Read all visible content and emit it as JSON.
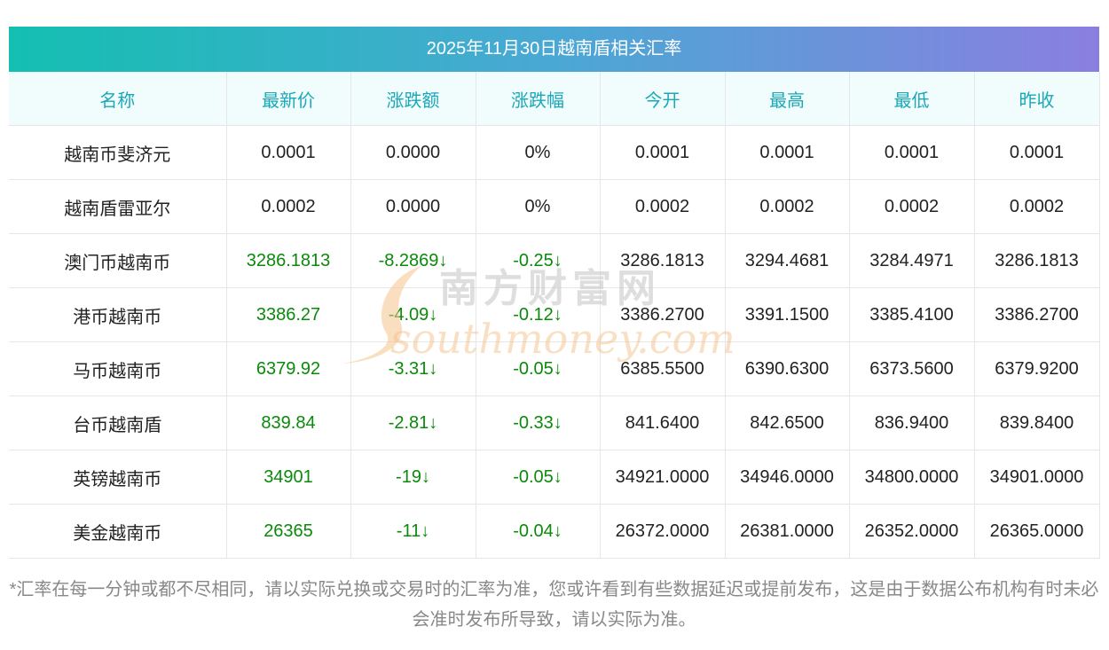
{
  "title": "2025年11月30日越南盾相关汇率",
  "colors": {
    "header_text": "#1aa8b8",
    "header_bg": "#f1fdfd",
    "down_green": "#0a8a0a",
    "gradient_start": "#14bfb1",
    "gradient_end": "#8a7fe0"
  },
  "table": {
    "columns": [
      "名称",
      "最新价",
      "涨跌额",
      "涨跌幅",
      "今开",
      "最高",
      "最低",
      "昨收"
    ],
    "rows": [
      {
        "name": "越南币斐济元",
        "latest": "0.0001",
        "change": "0.0000",
        "pct": "0%",
        "open": "0.0001",
        "high": "0.0001",
        "low": "0.0001",
        "prev": "0.0001",
        "trend": "flat"
      },
      {
        "name": "越南盾雷亚尔",
        "latest": "0.0002",
        "change": "0.0000",
        "pct": "0%",
        "open": "0.0002",
        "high": "0.0002",
        "low": "0.0002",
        "prev": "0.0002",
        "trend": "flat"
      },
      {
        "name": "澳门币越南币",
        "latest": "3286.1813",
        "change": "-8.2869↓",
        "pct": "-0.25↓",
        "open": "3286.1813",
        "high": "3294.4681",
        "low": "3284.4971",
        "prev": "3286.1813",
        "trend": "down"
      },
      {
        "name": "港币越南币",
        "latest": "3386.27",
        "change": "-4.09↓",
        "pct": "-0.12↓",
        "open": "3386.2700",
        "high": "3391.1500",
        "low": "3385.4100",
        "prev": "3386.2700",
        "trend": "down"
      },
      {
        "name": "马币越南币",
        "latest": "6379.92",
        "change": "-3.31↓",
        "pct": "-0.05↓",
        "open": "6385.5500",
        "high": "6390.6300",
        "low": "6373.5600",
        "prev": "6379.9200",
        "trend": "down"
      },
      {
        "name": "台币越南盾",
        "latest": "839.84",
        "change": "-2.81↓",
        "pct": "-0.33↓",
        "open": "841.6400",
        "high": "842.6500",
        "low": "836.9400",
        "prev": "839.8400",
        "trend": "down"
      },
      {
        "name": "英镑越南币",
        "latest": "34901",
        "change": "-19↓",
        "pct": "-0.05↓",
        "open": "34921.0000",
        "high": "34946.0000",
        "low": "34800.0000",
        "prev": "34901.0000",
        "trend": "down"
      },
      {
        "name": "美金越南币",
        "latest": "26365",
        "change": "-11↓",
        "pct": "-0.04↓",
        "open": "26372.0000",
        "high": "26381.0000",
        "low": "26352.0000",
        "prev": "26365.0000",
        "trend": "down"
      }
    ]
  },
  "note": "*汇率在每一分钟或都不尽相同，请以实际兑换或交易时的汇率为准，您或许看到有些数据延迟或提前发布，这是由于数据公布机构有时未必会准时发布所导致，请以实际为准。",
  "watermark": {
    "cn": "南方财富网",
    "en": "southmoney.com"
  }
}
